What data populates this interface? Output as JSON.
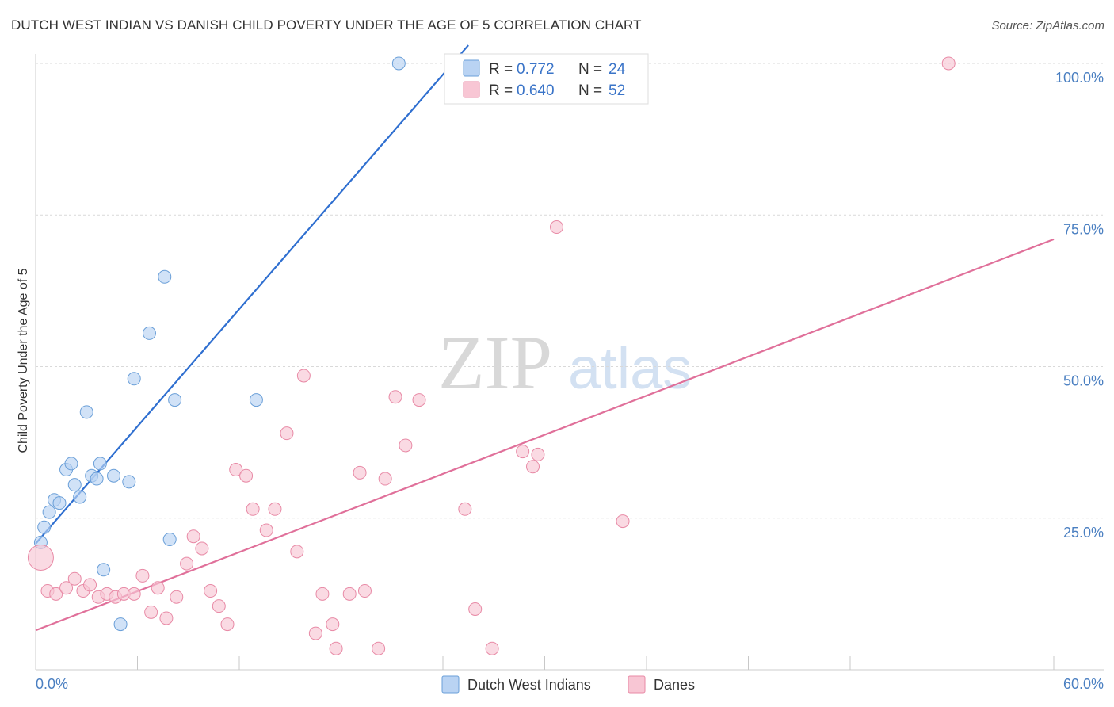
{
  "title": "DUTCH WEST INDIAN VS DANISH CHILD POVERTY UNDER THE AGE OF 5 CORRELATION CHART",
  "source": "Source: ZipAtlas.com",
  "watermark": {
    "zip": "ZIP",
    "atlas": "atlas"
  },
  "colors": {
    "blue_fill": "#b9d3f3",
    "blue_stroke": "#6a9fd8",
    "blue_line": "#2f6fd0",
    "pink_fill": "#f8c6d4",
    "pink_stroke": "#e88aa6",
    "pink_line": "#e0709a",
    "grid": "#d9d9d9",
    "tick_text": "#4a7fc1"
  },
  "legend": {
    "r_label": "R =",
    "n_label": "N =",
    "entries": [
      {
        "name": "Dutch West Indians",
        "r": "0.772",
        "n": "24",
        "color": "blue"
      },
      {
        "name": "Danes",
        "r": "0.640",
        "n": "52",
        "color": "pink"
      }
    ]
  },
  "chart_data": {
    "type": "scatter",
    "title": "DUTCH WEST INDIAN VS DANISH CHILD POVERTY UNDER THE AGE OF 5 CORRELATION CHART",
    "xlabel": "",
    "ylabel": "Child Poverty Under the Age of 5",
    "xlim": [
      0,
      60
    ],
    "ylim": [
      0,
      100
    ],
    "x_tick_labels": [
      "0.0%",
      "60.0%"
    ],
    "y_ticks": [
      25,
      50,
      75,
      100
    ],
    "y_tick_labels": [
      "25.0%",
      "50.0%",
      "75.0%",
      "100.0%"
    ],
    "grid": true,
    "series": [
      {
        "name": "Dutch West Indians",
        "color": "blue",
        "points": [
          {
            "x": 0.3,
            "y": 21.0
          },
          {
            "x": 0.5,
            "y": 23.5
          },
          {
            "x": 0.8,
            "y": 26.0
          },
          {
            "x": 1.1,
            "y": 28.0
          },
          {
            "x": 1.4,
            "y": 27.5
          },
          {
            "x": 1.8,
            "y": 33.0
          },
          {
            "x": 2.1,
            "y": 34.0
          },
          {
            "x": 2.3,
            "y": 30.5
          },
          {
            "x": 2.6,
            "y": 28.5
          },
          {
            "x": 3.0,
            "y": 42.5
          },
          {
            "x": 3.3,
            "y": 32.0
          },
          {
            "x": 3.6,
            "y": 31.5
          },
          {
            "x": 3.8,
            "y": 34.0
          },
          {
            "x": 4.0,
            "y": 16.5
          },
          {
            "x": 4.6,
            "y": 32.0
          },
          {
            "x": 5.0,
            "y": 7.5
          },
          {
            "x": 5.5,
            "y": 31.0
          },
          {
            "x": 5.8,
            "y": 48.0
          },
          {
            "x": 6.7,
            "y": 55.5
          },
          {
            "x": 7.6,
            "y": 64.8
          },
          {
            "x": 7.9,
            "y": 21.5
          },
          {
            "x": 8.2,
            "y": 44.5
          },
          {
            "x": 13.0,
            "y": 44.5
          },
          {
            "x": 21.4,
            "y": 100.0
          }
        ],
        "trend": {
          "x": [
            0,
            25.5
          ],
          "y": [
            20.8,
            103.0
          ]
        }
      },
      {
        "name": "Danes",
        "color": "pink",
        "points": [
          {
            "x": 0.3,
            "y": 18.5
          },
          {
            "x": 0.7,
            "y": 13.0
          },
          {
            "x": 1.2,
            "y": 12.5
          },
          {
            "x": 1.8,
            "y": 13.5
          },
          {
            "x": 2.3,
            "y": 15.0
          },
          {
            "x": 2.8,
            "y": 13.0
          },
          {
            "x": 3.2,
            "y": 14.0
          },
          {
            "x": 3.7,
            "y": 12.0
          },
          {
            "x": 4.2,
            "y": 12.5
          },
          {
            "x": 4.7,
            "y": 12.0
          },
          {
            "x": 5.2,
            "y": 12.5
          },
          {
            "x": 5.8,
            "y": 12.5
          },
          {
            "x": 6.3,
            "y": 15.5
          },
          {
            "x": 6.8,
            "y": 9.5
          },
          {
            "x": 7.2,
            "y": 13.5
          },
          {
            "x": 7.7,
            "y": 8.5
          },
          {
            "x": 8.3,
            "y": 12.0
          },
          {
            "x": 8.9,
            "y": 17.5
          },
          {
            "x": 9.3,
            "y": 22.0
          },
          {
            "x": 9.8,
            "y": 20.0
          },
          {
            "x": 10.3,
            "y": 13.0
          },
          {
            "x": 10.8,
            "y": 10.5
          },
          {
            "x": 11.3,
            "y": 7.5
          },
          {
            "x": 11.8,
            "y": 33.0
          },
          {
            "x": 12.4,
            "y": 32.0
          },
          {
            "x": 12.8,
            "y": 26.5
          },
          {
            "x": 13.6,
            "y": 23.0
          },
          {
            "x": 14.1,
            "y": 26.5
          },
          {
            "x": 14.8,
            "y": 39.0
          },
          {
            "x": 15.4,
            "y": 19.5
          },
          {
            "x": 15.8,
            "y": 48.5
          },
          {
            "x": 16.5,
            "y": 6.0
          },
          {
            "x": 16.9,
            "y": 12.5
          },
          {
            "x": 17.5,
            "y": 7.5
          },
          {
            "x": 17.7,
            "y": 3.5
          },
          {
            "x": 18.5,
            "y": 12.5
          },
          {
            "x": 19.1,
            "y": 32.5
          },
          {
            "x": 19.4,
            "y": 13.0
          },
          {
            "x": 20.2,
            "y": 3.5
          },
          {
            "x": 20.6,
            "y": 31.5
          },
          {
            "x": 21.2,
            "y": 45.0
          },
          {
            "x": 21.8,
            "y": 37.0
          },
          {
            "x": 22.6,
            "y": 44.5
          },
          {
            "x": 25.3,
            "y": 26.5
          },
          {
            "x": 25.9,
            "y": 10.0
          },
          {
            "x": 26.9,
            "y": 3.5
          },
          {
            "x": 28.7,
            "y": 36.0
          },
          {
            "x": 29.3,
            "y": 33.5
          },
          {
            "x": 29.6,
            "y": 35.5
          },
          {
            "x": 30.7,
            "y": 73.0
          },
          {
            "x": 34.6,
            "y": 24.5
          },
          {
            "x": 53.8,
            "y": 100.0
          }
        ],
        "trend": {
          "x": [
            0,
            60
          ],
          "y": [
            6.5,
            71.0
          ]
        }
      }
    ]
  }
}
